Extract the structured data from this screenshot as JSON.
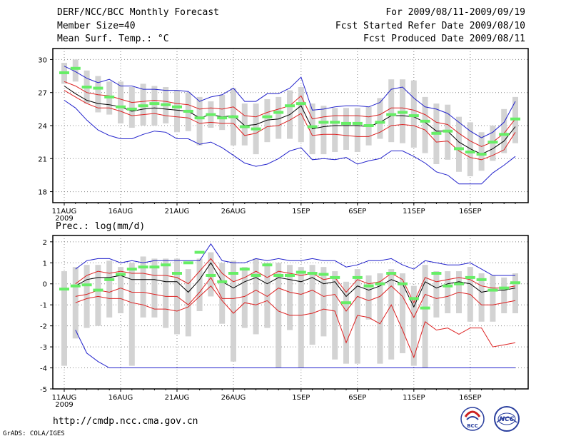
{
  "header": {
    "title": "DERF/NCC/BCC Monthly Forecast",
    "member_size": "Member Size=40",
    "variable": "Mean Surf. Temp.: °C",
    "forecast_period": "For 2009/08/11-2009/09/19",
    "started_refer": "Fcst Started Refer Date 2009/08/10",
    "produced": "Fcst Produced Date 2009/08/11"
  },
  "footer": {
    "url": "http://cmdp.ncc.cma.gov.cn",
    "grads": "GrADS: COLA/IGES",
    "logo_bcc": "BCC",
    "logo_ncc": "NCC"
  },
  "colors": {
    "bar": "#d3d3d3",
    "observed": "#66ee66",
    "mean": "#000000",
    "spread": "#dd2222",
    "extreme": "#2222cc",
    "grid": "#888888"
  },
  "x_ticks": [
    "11AUG",
    "16AUG",
    "21AUG",
    "26AUG",
    "1SEP",
    "6SEP",
    "11SEP",
    "16SEP"
  ],
  "x_tick_days": [
    0,
    5,
    10,
    15,
    21,
    26,
    31,
    36
  ],
  "x_year": "2009",
  "chart_data": [
    {
      "type": "line",
      "title": "Mean Surf. Temp.: °C",
      "ylim": [
        17,
        31
      ],
      "yticks": [
        18,
        21,
        24,
        27,
        30
      ],
      "grid": true,
      "days": 40,
      "series": [
        {
          "name": "max",
          "values": [
            29.4,
            28.9,
            28.3,
            27.9,
            28.2,
            27.6,
            27.6,
            27.3,
            27.3,
            27.2,
            27.2,
            27.1,
            26.2,
            26.6,
            26.8,
            27.4,
            26.2,
            26.2,
            26.9,
            26.9,
            27.4,
            28.4,
            25.4,
            25.5,
            25.7,
            25.8,
            25.8,
            25.7,
            26.1,
            27.3,
            27.5,
            26.5,
            25.7,
            25.5,
            25.1,
            24.3,
            23.5,
            22.9,
            23.4,
            24.3,
            26.2
          ]
        },
        {
          "name": "upper",
          "values": [
            28.0,
            27.6,
            27.0,
            26.8,
            26.7,
            26.4,
            26.1,
            26.2,
            26.3,
            26.2,
            26.0,
            25.9,
            25.5,
            25.6,
            25.5,
            25.7,
            24.9,
            24.8,
            25.2,
            25.5,
            25.8,
            26.7,
            24.6,
            24.8,
            24.9,
            24.9,
            24.9,
            24.8,
            25.0,
            25.6,
            25.6,
            25.4,
            25.0,
            24.3,
            24.1,
            23.3,
            22.6,
            22.1,
            22.5,
            23.3,
            24.6
          ]
        },
        {
          "name": "mean",
          "values": [
            27.6,
            26.9,
            26.3,
            26.0,
            25.9,
            25.7,
            25.3,
            25.5,
            25.6,
            25.5,
            25.4,
            25.3,
            24.7,
            25.0,
            24.8,
            24.9,
            24.0,
            24.1,
            24.5,
            24.6,
            25.0,
            25.8,
            23.7,
            23.9,
            24.0,
            24.0,
            24.0,
            23.9,
            24.3,
            24.9,
            24.9,
            24.8,
            24.3,
            23.5,
            23.5,
            22.5,
            21.9,
            21.4,
            21.9,
            22.6,
            23.9
          ]
        },
        {
          "name": "lower",
          "values": [
            27.2,
            26.6,
            26.0,
            25.6,
            25.6,
            25.3,
            24.9,
            25.0,
            25.1,
            24.9,
            24.8,
            24.7,
            24.2,
            24.3,
            24.2,
            24.2,
            23.1,
            23.3,
            23.9,
            24.0,
            24.5,
            25.1,
            23.1,
            23.2,
            23.2,
            23.1,
            23.0,
            23.0,
            23.4,
            24.0,
            24.1,
            24.0,
            23.6,
            22.5,
            22.6,
            21.7,
            21.1,
            20.9,
            21.3,
            21.8,
            23.4
          ]
        },
        {
          "name": "min",
          "values": [
            26.3,
            25.6,
            24.5,
            23.6,
            23.1,
            22.8,
            22.8,
            23.2,
            23.5,
            23.4,
            22.8,
            22.8,
            22.3,
            22.5,
            22.0,
            21.3,
            20.6,
            20.3,
            20.5,
            21.0,
            21.7,
            22.0,
            20.9,
            21.0,
            20.9,
            21.1,
            20.5,
            20.8,
            21.0,
            21.7,
            21.7,
            21.2,
            20.6,
            19.8,
            19.5,
            18.7,
            18.7,
            18.7,
            19.7,
            20.4,
            21.2
          ]
        },
        {
          "name": "obs",
          "values": [
            28.8,
            29.2,
            27.5,
            27.4,
            26.6,
            25.7,
            25.5,
            25.8,
            26.0,
            25.9,
            25.7,
            25.3,
            24.7,
            25.0,
            24.7,
            24.8,
            23.9,
            23.7,
            24.8,
            25.2,
            25.8,
            26.0,
            23.9,
            24.3,
            24.3,
            24.2,
            24.2,
            24.0,
            24.3,
            25.0,
            25.2,
            24.9,
            24.4,
            23.3,
            23.5,
            21.9,
            21.6,
            21.4,
            22.5,
            23.2,
            24.6
          ]
        },
        {
          "name": "bar_top",
          "values": [
            29.7,
            30.0,
            29.0,
            28.5,
            28.0,
            28.0,
            27.5,
            27.8,
            27.6,
            27.5,
            27.2,
            27.0,
            26.6,
            26.2,
            26.8,
            27.4,
            26.0,
            26.0,
            26.4,
            26.6,
            27.2,
            27.5,
            26.0,
            25.8,
            25.6,
            25.6,
            25.6,
            25.7,
            26.5,
            28.2,
            28.2,
            28.1,
            26.6,
            26.0,
            25.9,
            24.8,
            24.3,
            23.4,
            24.0,
            25.5,
            26.6
          ]
        },
        {
          "name": "bar_bottom",
          "values": [
            27.8,
            28.0,
            26.0,
            25.2,
            25.0,
            24.2,
            23.8,
            24.0,
            24.0,
            24.2,
            23.4,
            23.5,
            22.2,
            23.8,
            23.6,
            22.2,
            22.2,
            21.4,
            22.5,
            22.8,
            22.8,
            22.5,
            21.4,
            21.4,
            21.6,
            21.8,
            21.6,
            22.2,
            22.8,
            22.5,
            22.4,
            22.0,
            21.5,
            20.5,
            20.9,
            19.8,
            19.4,
            19.9,
            20.8,
            21.5,
            22.4
          ]
        }
      ]
    },
    {
      "type": "line",
      "title": "Prec.: log(mm/d)",
      "ylim": [
        -5,
        2.3
      ],
      "yticks": [
        2,
        1,
        0,
        -1,
        -2,
        -3,
        -4,
        -5
      ],
      "grid": true,
      "days": 40,
      "series": [
        {
          "name": "max",
          "values": [
            null,
            0.7,
            1.1,
            1.2,
            1.2,
            1.0,
            1.1,
            1.0,
            1.1,
            1.1,
            1.1,
            1.1,
            1.1,
            1.9,
            1.1,
            1.0,
            1.0,
            1.2,
            1.1,
            1.2,
            1.1,
            1.1,
            1.2,
            1.1,
            1.1,
            0.8,
            0.9,
            1.1,
            1.1,
            1.2,
            0.9,
            0.7,
            1.1,
            1.0,
            0.9,
            0.9,
            1.0,
            0.7,
            0.4,
            0.4,
            0.4
          ]
        },
        {
          "name": "upper",
          "values": [
            null,
            0.0,
            0.4,
            0.6,
            0.5,
            0.6,
            0.5,
            0.5,
            0.4,
            0.4,
            0.3,
            0.0,
            0.6,
            1.2,
            0.5,
            0.1,
            0.3,
            0.6,
            0.3,
            0.6,
            0.5,
            0.4,
            0.5,
            0.2,
            0.3,
            -0.4,
            0.2,
            0.0,
            0.1,
            0.5,
            0.2,
            -0.9,
            0.3,
            0.1,
            0.2,
            0.3,
            0.2,
            -0.1,
            -0.2,
            -0.2,
            -0.1
          ]
        },
        {
          "name": "mean",
          "values": [
            null,
            -0.1,
            0.2,
            0.3,
            0.3,
            0.4,
            0.2,
            0.2,
            0.2,
            0.1,
            0.1,
            -0.4,
            0.2,
            1.0,
            0.1,
            -0.2,
            0.1,
            0.3,
            0.0,
            0.3,
            0.2,
            0.1,
            0.3,
            0.0,
            0.1,
            -0.6,
            -0.1,
            -0.3,
            -0.1,
            0.2,
            0.0,
            -1.1,
            0.1,
            -0.2,
            0.0,
            0.1,
            0.0,
            -0.4,
            -0.3,
            -0.3,
            -0.2
          ]
        },
        {
          "name": "lower",
          "values": [
            null,
            -0.6,
            -0.5,
            -0.3,
            -0.4,
            -0.2,
            -0.4,
            -0.4,
            -0.5,
            -0.6,
            -0.6,
            -1.0,
            -0.4,
            0.3,
            -0.7,
            -0.7,
            -0.6,
            -0.3,
            -0.6,
            -0.2,
            -0.4,
            -0.5,
            -0.3,
            -0.6,
            -0.5,
            -1.3,
            -0.6,
            -0.8,
            -0.6,
            -0.1,
            -0.6,
            -1.6,
            -0.5,
            -0.7,
            -0.6,
            -0.4,
            -0.5,
            -1.0,
            -1.0,
            -0.9,
            -0.8
          ]
        },
        {
          "name": "low2",
          "values": [
            null,
            -0.9,
            -0.7,
            -0.6,
            -0.7,
            -0.7,
            -0.9,
            -1.0,
            -1.2,
            -1.2,
            -1.3,
            -1.1,
            -0.6,
            -0.1,
            -0.8,
            -1.4,
            -0.9,
            -1.0,
            -0.8,
            -1.3,
            -1.5,
            -1.5,
            -1.4,
            -1.2,
            -1.3,
            -2.8,
            -1.5,
            -1.6,
            -1.9,
            -1.0,
            -2.2,
            -3.5,
            -1.8,
            -2.2,
            -2.1,
            -2.4,
            -2.1,
            -2.1,
            -3.0,
            -2.9,
            -2.8
          ]
        },
        {
          "name": "min",
          "values": [
            null,
            -2.2,
            -3.3,
            -3.7,
            -4.0,
            -4.0,
            -4.0,
            -4.0,
            -4.0,
            -4.0,
            -4.0,
            -4.0,
            -4.0,
            -4.0,
            -4.0,
            -4.0,
            -4.0,
            -4.0,
            -4.0,
            -4.0,
            -4.0,
            -4.0,
            -4.0,
            -4.0,
            -4.0,
            -4.0,
            -4.0,
            -4.0,
            -4.0,
            -4.0,
            -4.0,
            -4.0,
            -4.0,
            -4.0,
            -4.0,
            -4.0,
            -4.0,
            -4.0,
            -4.0,
            -4.0,
            -4.0
          ]
        },
        {
          "name": "obs",
          "values": [
            -0.25,
            -0.1,
            -0.05,
            -0.3,
            0.2,
            0.45,
            0.7,
            0.8,
            0.8,
            0.9,
            0.5,
            1.0,
            1.5,
            0.4,
            0.1,
            0.5,
            0.7,
            0.4,
            0.9,
            0.4,
            0.4,
            0.55,
            0.5,
            0.45,
            0.3,
            -0.9,
            0.3,
            -0.1,
            0.0,
            0.5,
            0.0,
            -0.7,
            -1.15,
            0.5,
            -0.1,
            0.0,
            0.3,
            0.2,
            -0.3,
            -0.2,
            0.05
          ]
        },
        {
          "name": "bar_top",
          "values": [
            0.6,
            0.8,
            0.9,
            0.9,
            1.1,
            0.8,
            1.0,
            1.3,
            1.2,
            1.2,
            1.2,
            0.7,
            1.2,
            1.5,
            1.0,
            1.1,
            0.8,
            1.2,
            1.0,
            1.0,
            0.9,
            0.8,
            0.9,
            0.8,
            0.6,
            0.1,
            0.7,
            0.4,
            0.5,
            0.7,
            0.5,
            -0.1,
            0.9,
            0.6,
            0.6,
            0.6,
            0.8,
            0.5,
            0.4,
            0.3,
            0.5
          ]
        },
        {
          "name": "bar_bottom",
          "values": [
            -3.9,
            -2.6,
            -2.1,
            -2.0,
            -1.6,
            -1.4,
            -3.9,
            -1.6,
            -1.6,
            -2.1,
            -2.4,
            -2.5,
            -1.3,
            -0.6,
            -1.9,
            -3.7,
            -2.1,
            -2.4,
            -2.1,
            -4.0,
            -2.2,
            -4.0,
            -2.9,
            -2.5,
            -3.6,
            -3.8,
            -3.8,
            -1.7,
            -3.8,
            -3.6,
            -3.3,
            -3.9,
            -4.0,
            -1.6,
            -1.4,
            -1.4,
            -1.8,
            -1.8,
            -1.8,
            -1.4,
            -1.4
          ]
        }
      ]
    }
  ]
}
